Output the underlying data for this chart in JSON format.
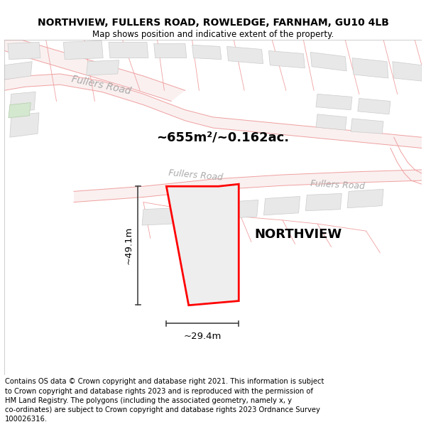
{
  "title": "NORTHVIEW, FULLERS ROAD, ROWLEDGE, FARNHAM, GU10 4LB",
  "subtitle": "Map shows position and indicative extent of the property.",
  "footer_line1": "Contains OS data © Crown copyright and database right 2021. This information is subject",
  "footer_line2": "to Crown copyright and database rights 2023 and is reproduced with the permission of",
  "footer_line3": "HM Land Registry. The polygons (including the associated geometry, namely x, y",
  "footer_line4": "co-ordinates) are subject to Crown copyright and database rights 2023 Ordnance Survey",
  "footer_line5": "100026316.",
  "area_label": "~655m²/~0.162ac.",
  "height_label": "~49.1m",
  "width_label": "~29.4m",
  "property_label": "NORTHVIEW",
  "bg_color": "#ffffff",
  "map_bg": "#ffffff",
  "road_line_color": "#f0a0a0",
  "road_fill_color": "#faf0f0",
  "building_fill": "#e8e8e8",
  "building_outline": "#cccccc",
  "green_fill": "#d4e8d0",
  "plot_fill": "#e8e8e8",
  "plot_outline": "#ff0000",
  "road_label_color": "#aaaaaa",
  "dim_line_color": "#444444",
  "title_fontsize": 10,
  "subtitle_fontsize": 8.5,
  "footer_fontsize": 7.2,
  "area_fontsize": 13,
  "property_fontsize": 13,
  "dim_fontsize": 9.5
}
